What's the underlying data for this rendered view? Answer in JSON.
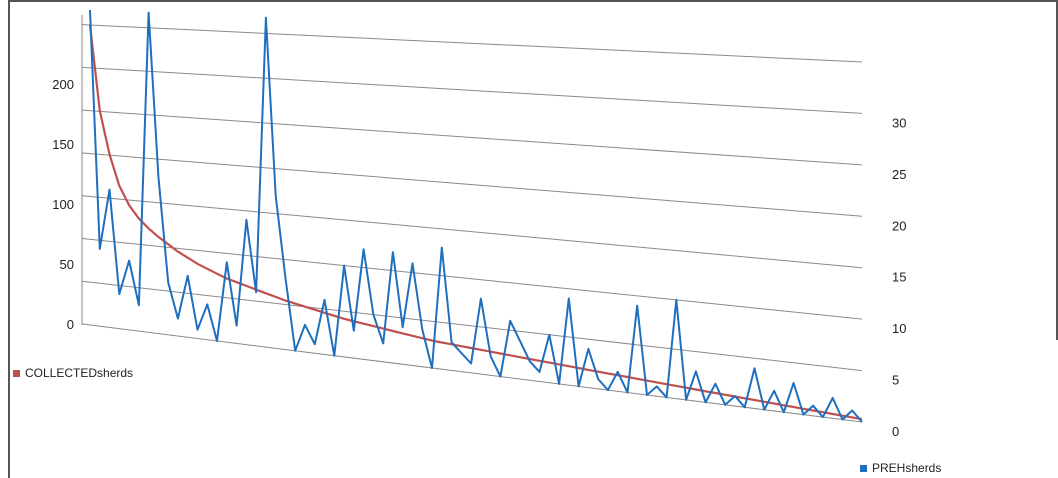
{
  "chart_data": {
    "type": "line",
    "title": "",
    "xlabel": "",
    "legend_placement": "bottom-left and bottom-right",
    "grid": true,
    "series": [
      {
        "name": "COLLECTEDsherds",
        "axis": "left",
        "color": "#c0504d",
        "values": [
          250,
          180,
          145,
          120,
          105,
          95,
          88,
          82,
          77,
          72,
          68,
          64,
          61,
          58,
          55,
          53,
          51,
          49,
          47,
          45,
          43,
          41.5,
          40,
          38.5,
          37,
          35.5,
          34,
          33,
          32,
          31,
          30,
          29,
          28,
          27,
          26,
          25,
          24.5,
          24,
          23.5,
          23,
          22.5,
          22,
          21.5,
          21,
          20.5,
          20,
          19.5,
          19,
          18.5,
          18,
          17.5,
          17,
          16.5,
          16,
          15.5,
          15,
          14.5,
          14,
          13.5,
          13,
          12.5,
          12,
          11.5,
          11,
          10.5,
          10,
          9.5,
          9,
          8.5,
          8,
          7.5,
          7,
          6.5,
          6,
          5.5,
          5,
          4.5,
          4,
          3.5,
          3
        ]
      },
      {
        "name": "PREHsherds",
        "axis": "right",
        "color": "#1f6fbf",
        "values": [
          50,
          9,
          16,
          4,
          8,
          3,
          50,
          18,
          6,
          2,
          7,
          1,
          4,
          0,
          9,
          2,
          14,
          6,
          40,
          17,
          8,
          0,
          3,
          1,
          6,
          0,
          10,
          3,
          12,
          5,
          2,
          12,
          4,
          11,
          4,
          0,
          13,
          3,
          2,
          1,
          8,
          2,
          0,
          6,
          4,
          2,
          1,
          5,
          0,
          9,
          0,
          4,
          1,
          0,
          2,
          0,
          9,
          0,
          1,
          0,
          10,
          0,
          3,
          0,
          2,
          0,
          1,
          0,
          4,
          0,
          2,
          0,
          3,
          0,
          1,
          0,
          2,
          0,
          1,
          0
        ]
      }
    ],
    "left_axis": {
      "range": [
        0,
        250
      ],
      "tick_labels": [
        "0",
        "50",
        "100",
        "150",
        "200"
      ]
    },
    "right_axis": {
      "range": [
        0,
        35
      ],
      "tick_labels": [
        "0",
        "5",
        "10",
        "15",
        "20",
        "25",
        "30"
      ]
    }
  },
  "legend": {
    "left_label": "COLLECTEDsherds",
    "right_label": "PREHsherds"
  }
}
